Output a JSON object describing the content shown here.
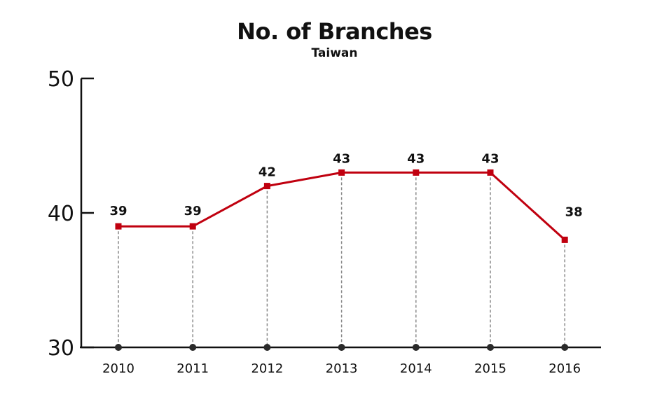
{
  "chart_data": {
    "type": "line",
    "title": "No. of Branches",
    "subtitle": "Taiwan",
    "categories": [
      "2010",
      "2011",
      "2012",
      "2013",
      "2014",
      "2015",
      "2016"
    ],
    "series": [
      {
        "values": [
          39,
          39,
          42,
          43,
          43,
          43,
          38
        ]
      }
    ],
    "data_labels": [
      "39",
      "39",
      "42",
      "43",
      "43",
      "43",
      "38"
    ],
    "yticks": [
      {
        "value": 30,
        "label": "30"
      },
      {
        "value": 40,
        "label": "40"
      },
      {
        "value": 50,
        "label": "50"
      }
    ],
    "ylim": [
      30,
      50
    ],
    "grid": false,
    "drop_lines": true,
    "colors": {
      "line": "#c0000f",
      "marker": "#c0000f",
      "axis": "#111111",
      "base_marker": "#2a2a2a",
      "drop_line": "#888888"
    }
  }
}
